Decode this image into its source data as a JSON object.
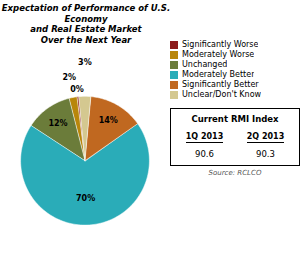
{
  "chart_data": {
    "type": "pie",
    "title": "Expectation of Performance of U.S. Economy\nand Real Estate Market\nOver the Next Year",
    "categories": [
      "Significantly Worse",
      "Moderately Worse",
      "Unchanged",
      "Moderately Better",
      "Significantly Better",
      "Unclear/Don't Know"
    ],
    "values": [
      0.5,
      2,
      12,
      70,
      14,
      3
    ],
    "value_labels": [
      "0%",
      "2%",
      "12%",
      "70%",
      "14%",
      "3%"
    ],
    "colors": [
      "#8B1A1A",
      "#B8860B",
      "#6B7C3A",
      "#2AACB8",
      "#C06820",
      "#D4C890"
    ],
    "data_labels": true,
    "legend": "right",
    "source": "Source: RCLCO",
    "index_box": {
      "title": "Current RMI Index",
      "categories": [
        "1Q 2013",
        "2Q 2013"
      ],
      "values": [
        90.6,
        90.3
      ]
    }
  }
}
